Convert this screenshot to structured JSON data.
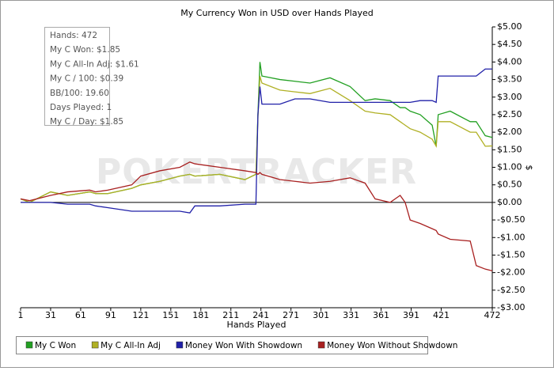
{
  "chart_data": {
    "type": "line",
    "title": "My Currency Won in USD over Hands Played",
    "x_label": "Hands Played",
    "y_label": "$",
    "watermark": "POKERTRACKER",
    "info": [
      "Hands: 472",
      "My C Won: $1.85",
      "My C All-In Adj: $1.61",
      "My C / 100: $0.39",
      "BB/100: 19.60",
      "Days Played: 1",
      "My C / Day: $1.85"
    ],
    "grid": false,
    "y_axis_side": "right",
    "legend": "bottom",
    "x": [
      1,
      10,
      31,
      48,
      70,
      76,
      88,
      112,
      121,
      140,
      160,
      170,
      175,
      200,
      225,
      236,
      238,
      240,
      242,
      260,
      275,
      290,
      310,
      330,
      345,
      355,
      370,
      380,
      385,
      390,
      400,
      412,
      416,
      418,
      430,
      450,
      456,
      465,
      472
    ],
    "series": [
      {
        "name": "My C Won",
        "color": "#22a022",
        "values": [
          0.1,
          0,
          0.3,
          0.2,
          0.3,
          0.25,
          0.25,
          0.4,
          0.5,
          0.6,
          0.75,
          0.8,
          0.75,
          0.8,
          0.65,
          0.8,
          2.5,
          4.0,
          3.6,
          3.5,
          3.45,
          3.4,
          3.55,
          3.3,
          2.9,
          2.95,
          2.9,
          2.7,
          2.7,
          2.6,
          2.5,
          2.2,
          1.6,
          2.5,
          2.6,
          2.3,
          2.3,
          1.9,
          1.85
        ]
      },
      {
        "name": "My C All-In Adj",
        "color": "#b0b024",
        "values": [
          0.1,
          0,
          0.3,
          0.2,
          0.3,
          0.25,
          0.25,
          0.4,
          0.5,
          0.6,
          0.75,
          0.8,
          0.75,
          0.8,
          0.65,
          0.8,
          2.4,
          3.6,
          3.4,
          3.2,
          3.15,
          3.1,
          3.25,
          2.9,
          2.6,
          2.55,
          2.5,
          2.3,
          2.2,
          2.1,
          2.0,
          1.8,
          1.6,
          2.3,
          2.3,
          2.0,
          2.0,
          1.6,
          1.61
        ]
      },
      {
        "name": "Money Won With Showdown",
        "color": "#2020a8",
        "values": [
          0,
          0,
          0,
          -0.05,
          -0.05,
          -0.1,
          -0.15,
          -0.25,
          -0.25,
          -0.25,
          -0.25,
          -0.3,
          -0.1,
          -0.1,
          -0.05,
          -0.05,
          2.5,
          3.3,
          2.8,
          2.8,
          2.95,
          2.95,
          2.85,
          2.85,
          2.85,
          2.85,
          2.85,
          2.85,
          2.85,
          2.85,
          2.9,
          2.9,
          2.85,
          3.6,
          3.6,
          3.6,
          3.6,
          3.8,
          3.8
        ]
      },
      {
        "name": "Money Won Without Showdown",
        "color": "#a82020",
        "values": [
          0.1,
          0.05,
          0.2,
          0.3,
          0.35,
          0.3,
          0.35,
          0.5,
          0.75,
          0.9,
          1.0,
          1.15,
          1.1,
          1.0,
          0.9,
          0.85,
          0.8,
          0.85,
          0.8,
          0.65,
          0.6,
          0.55,
          0.6,
          0.7,
          0.55,
          0.1,
          0.0,
          0.2,
          0.0,
          -0.5,
          -0.6,
          -0.75,
          -0.8,
          -0.9,
          -1.05,
          -1.1,
          -1.8,
          -1.9,
          -1.95
        ]
      }
    ],
    "xlim": [
      1,
      472
    ],
    "xticks": [
      1,
      31,
      61,
      91,
      121,
      151,
      181,
      211,
      241,
      271,
      301,
      331,
      361,
      391,
      421,
      472
    ],
    "ylim": [
      -3,
      5
    ],
    "yticks": [
      {
        "value": 5,
        "label": "$5.00"
      },
      {
        "value": 4.5,
        "label": "$4.50"
      },
      {
        "value": 4,
        "label": "$4.00"
      },
      {
        "value": 3.5,
        "label": "$3.50"
      },
      {
        "value": 3,
        "label": "$3.00"
      },
      {
        "value": 2.5,
        "label": "$2.50"
      },
      {
        "value": 2,
        "label": "$2.00"
      },
      {
        "value": 1.5,
        "label": "$1.50"
      },
      {
        "value": 1,
        "label": "$1.00"
      },
      {
        "value": 0.5,
        "label": "$0.50"
      },
      {
        "value": 0,
        "label": "$0.00"
      },
      {
        "value": -0.5,
        "label": "-$0.50"
      },
      {
        "value": -1,
        "label": "-$1.00"
      },
      {
        "value": -1.5,
        "label": "-$1.50"
      },
      {
        "value": -2,
        "label": "-$2.00"
      },
      {
        "value": -2.5,
        "label": "-$2.50"
      },
      {
        "value": -3,
        "label": "-$3.00"
      }
    ]
  }
}
